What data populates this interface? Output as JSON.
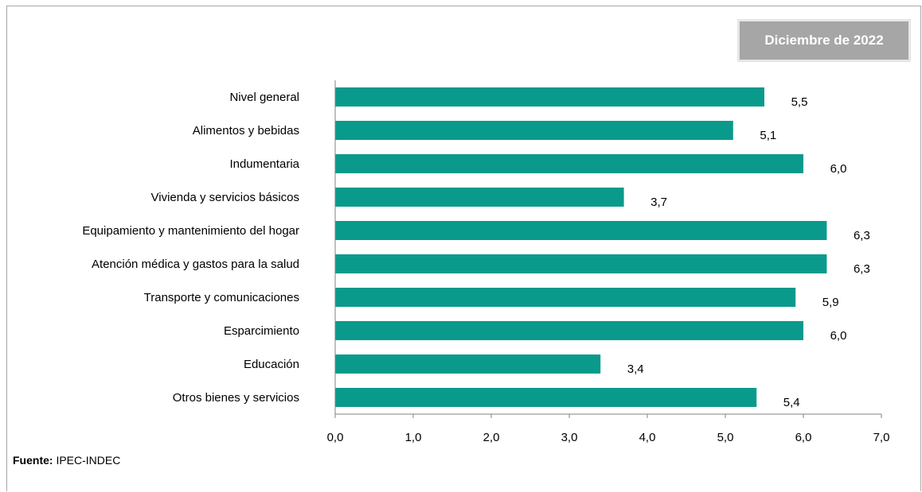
{
  "period_label": "Diciembre de 2022",
  "source": {
    "label": "Fuente:",
    "value": "IPEC-INDEC"
  },
  "colors": {
    "bar": "#0a9a8c",
    "axis": "#808080"
  },
  "chart_data": {
    "type": "bar",
    "orientation": "horizontal",
    "categories": [
      "Nivel  general",
      "Alimentos y bebidas",
      "Indumentaria",
      "Vivienda y servicios básicos",
      "Equipamiento  y  mantenimiento  del hogar",
      "Atención  médica y gastos para la salud",
      "Transporte  y comunicaciones",
      "Esparcimiento",
      "Educación",
      "Otros bienes y servicios"
    ],
    "values": [
      5.5,
      5.1,
      6.0,
      3.7,
      6.3,
      6.3,
      5.9,
      6.0,
      3.4,
      5.4
    ],
    "value_labels": [
      "5,5",
      "5,1",
      "6,0",
      "3,7",
      "6,3",
      "6,3",
      "5,9",
      "6,0",
      "3,4",
      "5,4"
    ],
    "xlim": [
      0,
      7
    ],
    "x_ticks": [
      0,
      1,
      2,
      3,
      4,
      5,
      6,
      7
    ],
    "x_tick_labels": [
      "0,0",
      "1,0",
      "2,0",
      "3,0",
      "4,0",
      "5,0",
      "6,0",
      "7,0"
    ],
    "grid": false
  }
}
